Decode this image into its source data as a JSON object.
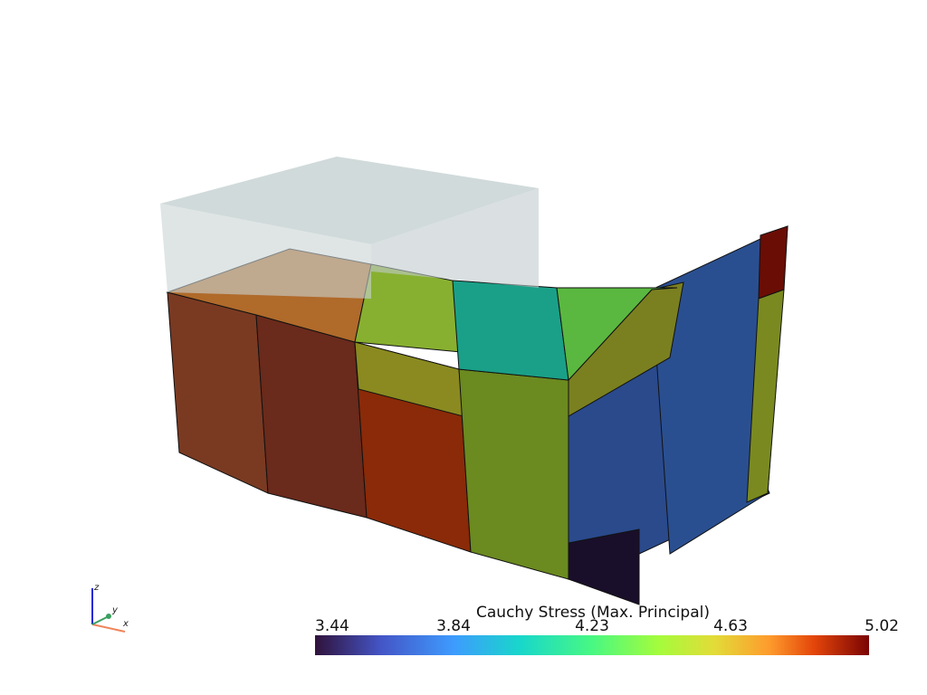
{
  "colorbar": {
    "title": "Cauchy Stress (Max. Principal)",
    "ticks": [
      3.44,
      3.84,
      4.23,
      4.63,
      5.02
    ]
  },
  "axes": {
    "x": "x",
    "y": "y",
    "z": "z"
  }
}
